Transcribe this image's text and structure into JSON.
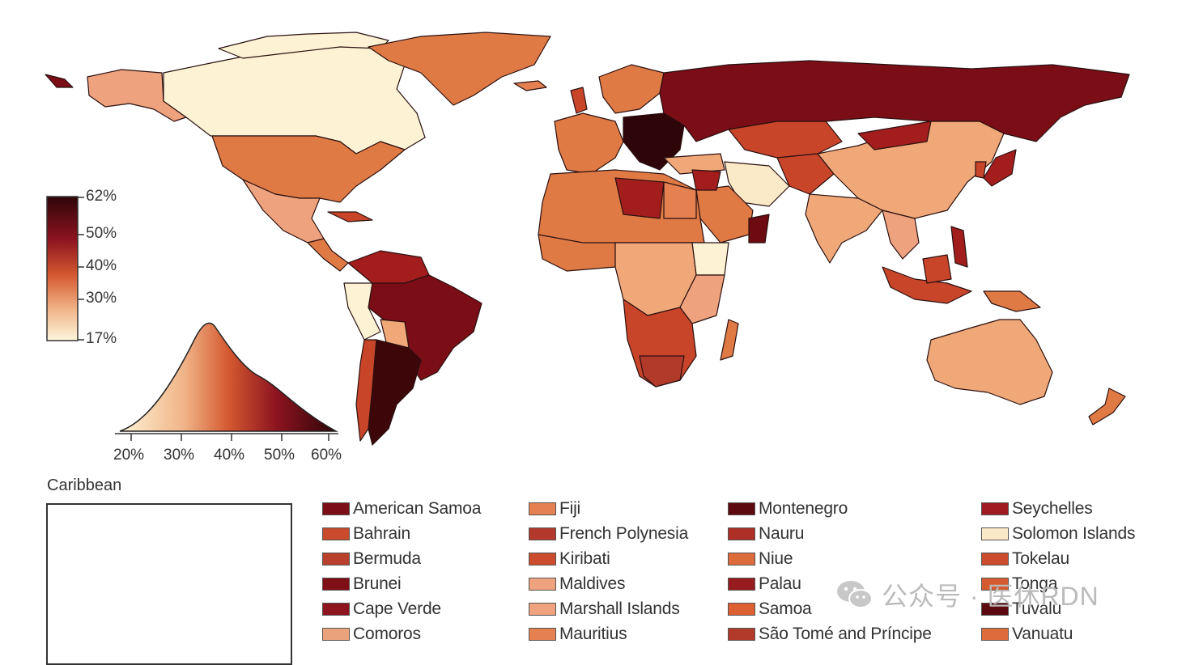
{
  "legend": {
    "scale_labels": [
      "62%",
      "50%",
      "40%",
      "30%",
      "17%"
    ],
    "density_ticks": [
      "20%",
      "30%",
      "40%",
      "50%",
      "60%"
    ],
    "colors": [
      "#2e0508",
      "#6e0a12",
      "#a31d1d",
      "#c9452a",
      "#e07a45",
      "#f0a878",
      "#f8d3ad",
      "#fdf3d4"
    ]
  },
  "caribbean": {
    "title": "Caribbean"
  },
  "islands": [
    {
      "name": "American Samoa",
      "color": "#7a0d16"
    },
    {
      "name": "Bahrain",
      "color": "#c94a2d"
    },
    {
      "name": "Bermuda",
      "color": "#b9402c"
    },
    {
      "name": "Brunei",
      "color": "#7f1016"
    },
    {
      "name": "Cape Verde",
      "color": "#8e1420"
    },
    {
      "name": "Comoros",
      "color": "#eaa27a"
    },
    {
      "name": "Fiji",
      "color": "#e58150"
    },
    {
      "name": "French Polynesia",
      "color": "#b3372b"
    },
    {
      "name": "Kiribati",
      "color": "#cc4d2e"
    },
    {
      "name": "Maldives",
      "color": "#eea27d"
    },
    {
      "name": "Marshall Islands",
      "color": "#eea27d"
    },
    {
      "name": "Mauritius",
      "color": "#e58150"
    },
    {
      "name": "Montenegro",
      "color": "#5c0a0f"
    },
    {
      "name": "Nauru",
      "color": "#ad2f25"
    },
    {
      "name": "Niue",
      "color": "#de6b3c"
    },
    {
      "name": "Palau",
      "color": "#961c1f"
    },
    {
      "name": "Samoa",
      "color": "#de5f32"
    },
    {
      "name": "São Tomé and Príncipe",
      "color": "#b13a2a"
    },
    {
      "name": "Seychelles",
      "color": "#a01c22"
    },
    {
      "name": "Solomon Islands",
      "color": "#fbeac7"
    },
    {
      "name": "Tokelau",
      "color": "#cc4d2e"
    },
    {
      "name": "Tonga",
      "color": "#d55a30"
    },
    {
      "name": "Tuvalu",
      "color": "#5c0a0f"
    },
    {
      "name": "Vanuatu",
      "color": "#de6b3c"
    }
  ],
  "watermark": {
    "text": "公众号 · 医休RDN"
  }
}
